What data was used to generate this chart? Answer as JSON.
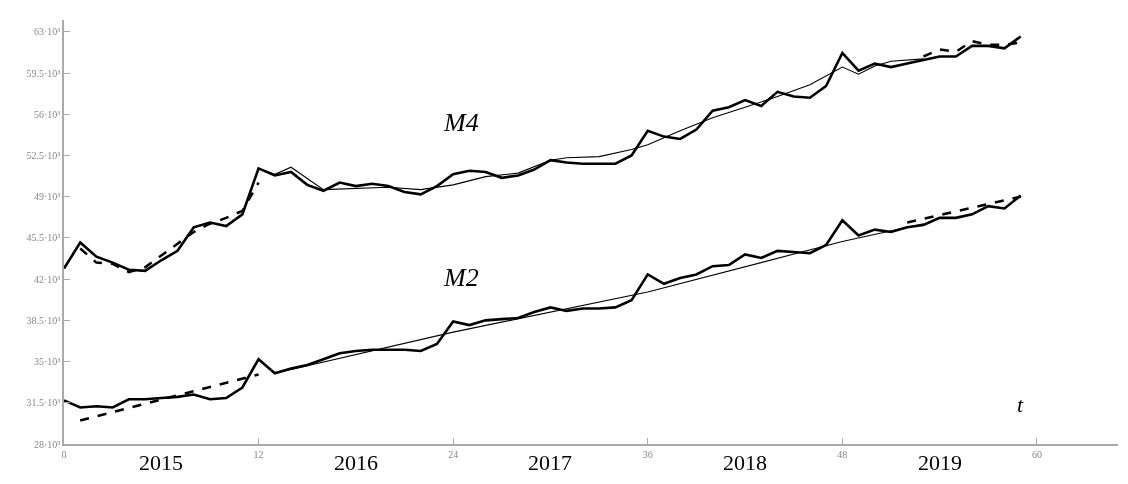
{
  "chart_data": {
    "type": "line",
    "xlim": [
      0,
      65
    ],
    "xticks": [
      0,
      12,
      24,
      36,
      48,
      60
    ],
    "ylim": [
      28000,
      64000
    ],
    "yticks": [
      {
        "value": 28000,
        "label": "28·10³"
      },
      {
        "value": 31500,
        "label": "31.5·10³"
      },
      {
        "value": 35000,
        "label": "35·10³"
      },
      {
        "value": 38500,
        "label": "38.5·10³"
      },
      {
        "value": 42000,
        "label": "42·10³"
      },
      {
        "value": 45500,
        "label": "45.5·10³"
      },
      {
        "value": 49000,
        "label": "49·10³"
      },
      {
        "value": 52500,
        "label": "52.5·10³"
      },
      {
        "value": 56000,
        "label": "56·10³"
      },
      {
        "value": 59500,
        "label": "59.5·10³"
      },
      {
        "value": 63000,
        "label": "63·10³"
      }
    ],
    "xlabel": "t",
    "annotations": [
      "2015",
      "2016",
      "2017",
      "2018",
      "2019"
    ],
    "series": [
      {
        "name": "M4",
        "color": "#000000",
        "line_style": "solid",
        "x": [
          0,
          1,
          2,
          3,
          4,
          5,
          6,
          7,
          8,
          9,
          10,
          11,
          12,
          13,
          14,
          15,
          16,
          17,
          18,
          19,
          20,
          21,
          22,
          23,
          24,
          25,
          26,
          27,
          28,
          29,
          30,
          31,
          32,
          33,
          34,
          35,
          36,
          37,
          38,
          39,
          40,
          41,
          42,
          43,
          44,
          45,
          46,
          47,
          48,
          49,
          50,
          51,
          52,
          53,
          54,
          55,
          56,
          57,
          58,
          59
        ],
        "values": [
          42900,
          45100,
          43900,
          43400,
          42800,
          42700,
          43600,
          44400,
          46400,
          46800,
          46500,
          47500,
          51400,
          50800,
          51100,
          50000,
          49500,
          50200,
          49900,
          50100,
          49900,
          49400,
          49200,
          49900,
          50900,
          51200,
          51100,
          50600,
          50800,
          51300,
          52100,
          51900,
          51800,
          51800,
          51800,
          52500,
          54600,
          54100,
          53900,
          54700,
          56300,
          56600,
          57200,
          56700,
          57900,
          57500,
          57400,
          58400,
          61200,
          59700,
          60300,
          60000,
          60300,
          60600,
          60900,
          60900,
          61800,
          61800,
          61600,
          62600
        ]
      },
      {
        "color": "#000000",
        "line_style": "solid",
        "x": [
          12,
          13,
          14,
          16,
          20,
          22,
          24,
          26,
          28,
          30,
          31,
          33,
          35,
          36,
          38,
          40,
          42,
          44,
          46,
          48,
          49,
          50,
          51,
          53
        ],
        "values": [
          51400,
          50900,
          51500,
          49600,
          49800,
          49600,
          50000,
          50700,
          51000,
          52100,
          52300,
          52400,
          53000,
          53400,
          54600,
          55700,
          56600,
          57500,
          58500,
          60000,
          59400,
          60100,
          60500,
          60700
        ]
      },
      {
        "color": "#000000",
        "line_style": "dashed",
        "x": [
          1,
          2,
          3,
          4,
          5,
          6,
          7,
          8,
          9,
          10,
          11,
          12
        ],
        "values": [
          44600,
          43400,
          43300,
          42600,
          43000,
          44000,
          45000,
          46000,
          46700,
          47200,
          47800,
          50200
        ]
      },
      {
        "color": "#000000",
        "line_style": "dashed",
        "x": [
          53,
          54,
          55,
          56,
          57,
          58,
          59
        ],
        "values": [
          60900,
          61500,
          61300,
          62200,
          61900,
          61900,
          62100
        ]
      },
      {
        "name": "M2",
        "color": "#000000",
        "line_style": "solid",
        "x": [
          0,
          1,
          2,
          3,
          4,
          5,
          6,
          7,
          8,
          9,
          10,
          11,
          12,
          13,
          14,
          15,
          16,
          17,
          18,
          19,
          20,
          21,
          22,
          23,
          24,
          25,
          26,
          27,
          28,
          29,
          30,
          31,
          32,
          33,
          34,
          35,
          36,
          37,
          38,
          39,
          40,
          41,
          42,
          43,
          44,
          45,
          46,
          47,
          48,
          49,
          50,
          51,
          52,
          53,
          54,
          55,
          56,
          57,
          58,
          59
        ],
        "values": [
          31700,
          31100,
          31200,
          31100,
          31800,
          31800,
          31900,
          32000,
          32200,
          31800,
          31900,
          32800,
          35200,
          34000,
          34400,
          34700,
          35200,
          35700,
          35900,
          36000,
          36000,
          36000,
          35900,
          36500,
          38400,
          38100,
          38500,
          38600,
          38700,
          39200,
          39600,
          39300,
          39500,
          39500,
          39600,
          40200,
          42400,
          41600,
          42100,
          42400,
          43100,
          43200,
          44100,
          43800,
          44400,
          44300,
          44200,
          44900,
          47000,
          45700,
          46200,
          46000,
          46400,
          46600,
          47200,
          47200,
          47500,
          48200,
          48000,
          49100
        ]
      },
      {
        "color": "#000000",
        "line_style": "solid",
        "x": [
          13,
          24,
          36,
          48,
          53
        ],
        "values": [
          34000,
          37500,
          40900,
          45200,
          46700
        ]
      },
      {
        "color": "#000000",
        "line_style": "dashed",
        "x": [
          1,
          12
        ],
        "values": [
          30000,
          33900
        ]
      },
      {
        "color": "#000000",
        "line_style": "dashed",
        "x": [
          52,
          59
        ],
        "values": [
          46800,
          49000
        ]
      }
    ]
  }
}
